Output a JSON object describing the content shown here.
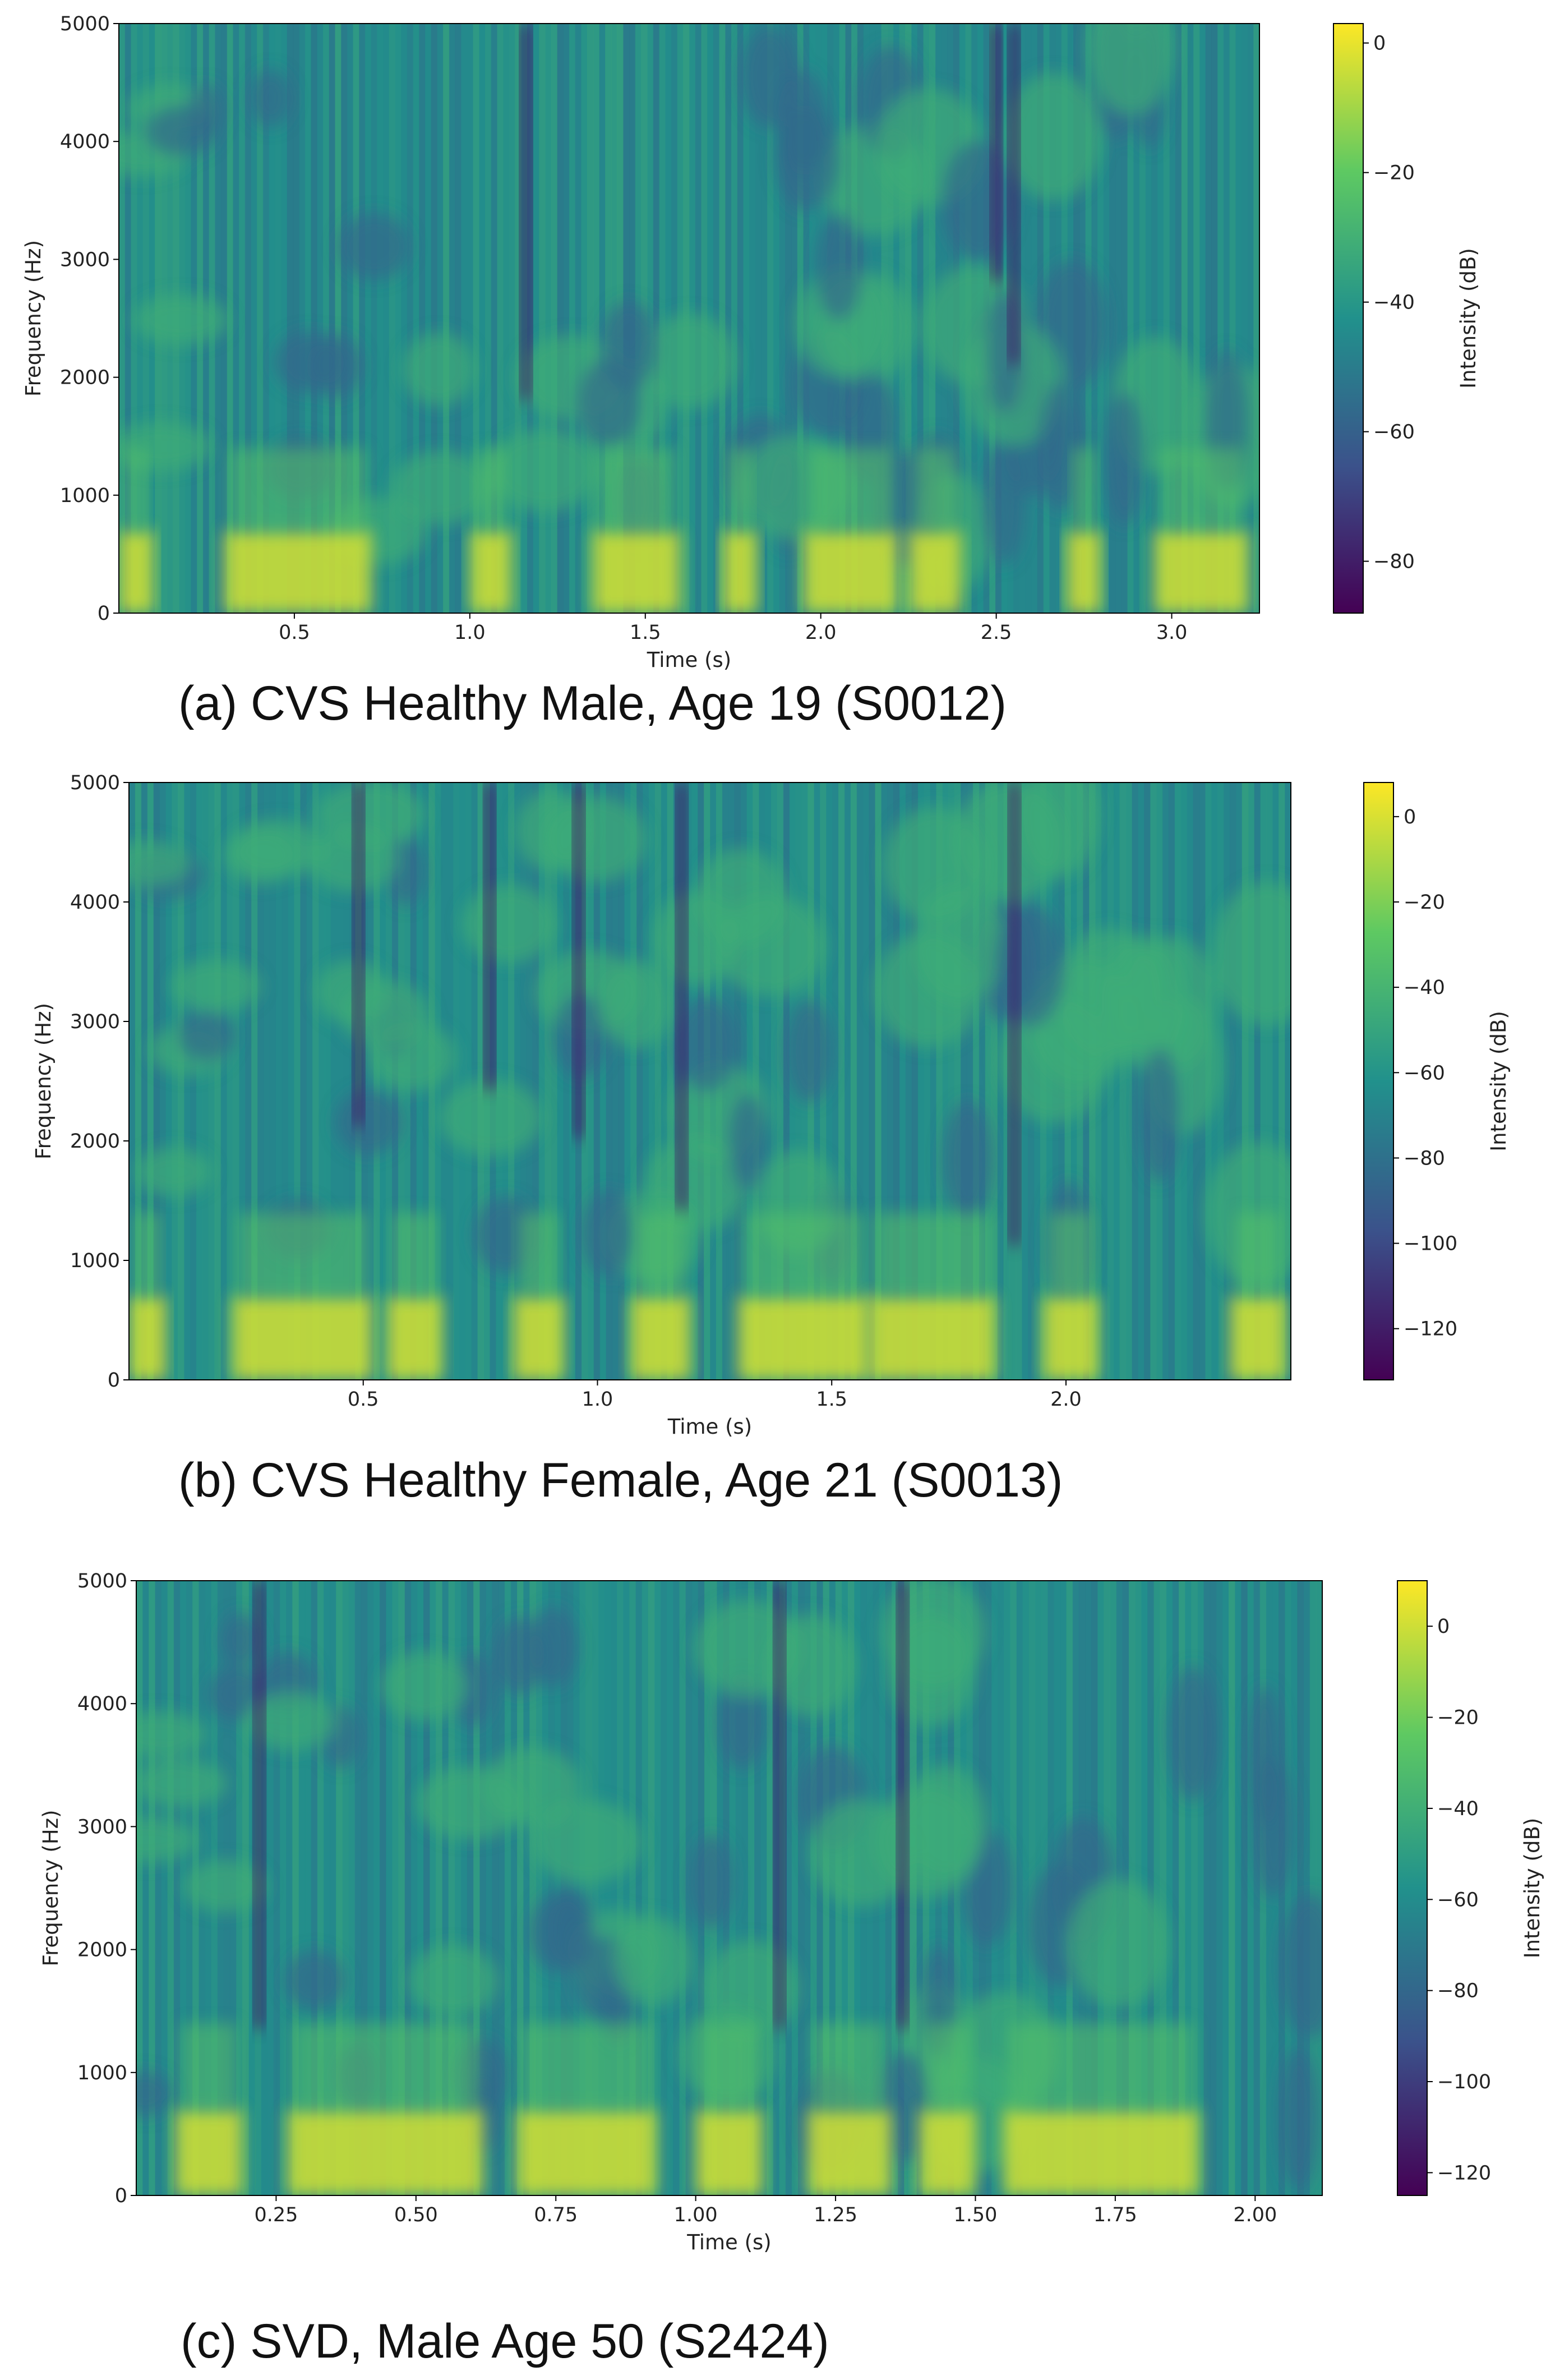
{
  "colors": {
    "viridis": [
      "#440154",
      "#3b528b",
      "#21918c",
      "#5ec962",
      "#fde725"
    ],
    "frame": "#000000"
  },
  "chart_data": [
    {
      "type": "heatmap",
      "caption": "(a) CVS Healthy Male, Age 19 (S0012)",
      "xlabel": "Time (s)",
      "ylabel": "Frequency (Hz)",
      "colorbar_label": "Intensity (dB)",
      "xlim": [
        0,
        3.25
      ],
      "ylim": [
        0,
        5000
      ],
      "xticks": [
        0.5,
        1.0,
        1.5,
        2.0,
        2.5,
        3.0
      ],
      "xtick_labels": [
        "0.5",
        "1.0",
        "1.5",
        "2.0",
        "2.5",
        "3.0"
      ],
      "yticks": [
        0,
        1000,
        2000,
        3000,
        4000,
        5000
      ],
      "ytick_labels": [
        "0",
        "1000",
        "2000",
        "3000",
        "4000",
        "5000"
      ],
      "clim": [
        -88,
        3
      ],
      "cbar_ticks": [
        0,
        -20,
        -40,
        -60,
        -80
      ],
      "cbar_tick_labels": [
        "0",
        "−20",
        "−40",
        "−60",
        "−80"
      ],
      "voiced_segments": [
        [
          0.0,
          0.1
        ],
        [
          0.3,
          0.72
        ],
        [
          1.0,
          1.12
        ],
        [
          1.35,
          1.6
        ],
        [
          1.72,
          1.82
        ],
        [
          1.95,
          2.22
        ],
        [
          2.25,
          2.4
        ],
        [
          2.7,
          2.8
        ],
        [
          2.95,
          3.22
        ]
      ],
      "dark_bands": [
        [
          1.16,
          3000
        ],
        [
          2.5,
          4000
        ],
        [
          2.55,
          3300
        ]
      ]
    },
    {
      "type": "heatmap",
      "caption": "(b) CVS Healthy Female, Age 21 (S0013)",
      "xlabel": "Time (s)",
      "ylabel": "Frequency (Hz)",
      "colorbar_label": "Intensity (dB)",
      "xlim": [
        0,
        2.48
      ],
      "ylim": [
        0,
        5000
      ],
      "xticks": [
        0.5,
        1.0,
        1.5,
        2.0
      ],
      "xtick_labels": [
        "0.5",
        "1.0",
        "1.5",
        "2.0"
      ],
      "yticks": [
        0,
        1000,
        2000,
        3000,
        4000,
        5000
      ],
      "ytick_labels": [
        "0",
        "1000",
        "2000",
        "3000",
        "4000",
        "5000"
      ],
      "clim": [
        -132,
        8
      ],
      "cbar_ticks": [
        0,
        -20,
        -40,
        -60,
        -80,
        -100,
        -120
      ],
      "cbar_tick_labels": [
        "0",
        "−20",
        "−40",
        "−60",
        "−80",
        "−100",
        "−120"
      ],
      "voiced_segments": [
        [
          0.0,
          0.08
        ],
        [
          0.22,
          0.52
        ],
        [
          0.55,
          0.67
        ],
        [
          0.82,
          0.93
        ],
        [
          1.07,
          1.2
        ],
        [
          1.3,
          1.58
        ],
        [
          1.58,
          1.85
        ],
        [
          1.95,
          2.07
        ],
        [
          2.35,
          2.47
        ]
      ],
      "dark_bands": [
        [
          0.49,
          3300
        ],
        [
          0.77,
          3600
        ],
        [
          0.96,
          3200
        ],
        [
          1.18,
          2600
        ],
        [
          1.89,
          2300
        ]
      ]
    },
    {
      "type": "heatmap",
      "caption": "(c) SVD, Male Age 50 (S2424)",
      "xlabel": "Time (s)",
      "ylabel": "Frequency (Hz)",
      "colorbar_label": "Intensity (dB)",
      "xlim": [
        0,
        2.12
      ],
      "ylim": [
        0,
        5000
      ],
      "xticks": [
        0.25,
        0.5,
        0.75,
        1.0,
        1.25,
        1.5,
        1.75,
        2.0
      ],
      "xtick_labels": [
        "0.25",
        "0.50",
        "0.75",
        "1.00",
        "1.25",
        "1.50",
        "1.75",
        "2.00"
      ],
      "yticks": [
        0,
        1000,
        2000,
        3000,
        4000,
        5000
      ],
      "ytick_labels": [
        "0",
        "1000",
        "2000",
        "3000",
        "4000",
        "5000"
      ],
      "clim": [
        -125,
        10
      ],
      "cbar_ticks": [
        0,
        -20,
        -40,
        -60,
        -80,
        -100,
        -120
      ],
      "cbar_tick_labels": [
        "0",
        "−20",
        "−40",
        "−60",
        "−80",
        "−100",
        "−120"
      ],
      "voiced_segments": [
        [
          0.07,
          0.19
        ],
        [
          0.27,
          0.62
        ],
        [
          0.68,
          0.93
        ],
        [
          1.0,
          1.12
        ],
        [
          1.2,
          1.35
        ],
        [
          1.4,
          1.5
        ],
        [
          1.55,
          1.9
        ]
      ],
      "dark_bands": [
        [
          0.22,
          2500
        ],
        [
          1.15,
          2500
        ],
        [
          1.37,
          2500
        ]
      ]
    }
  ]
}
